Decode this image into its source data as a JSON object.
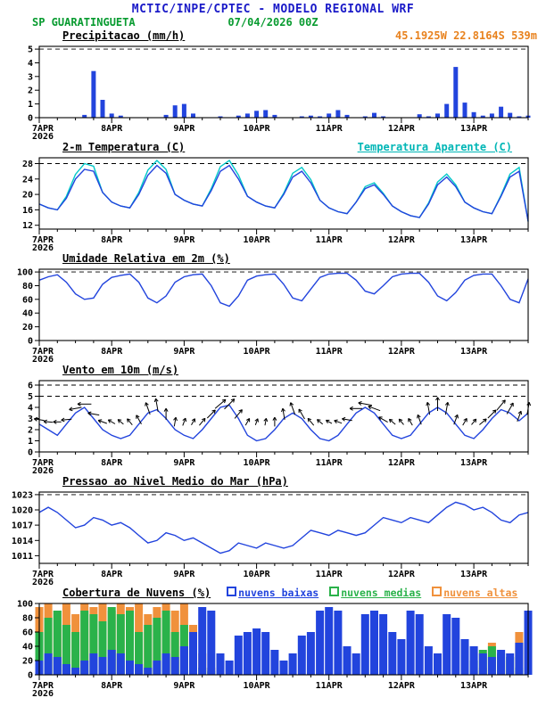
{
  "header": {
    "title": "MCTIC/INPE/CPTEC - MODELO REGIONAL WRF",
    "station": "SP GUARATINGUETA",
    "run": "07/04/2026 00Z",
    "coords": "45.1925W 22.8164S 539m"
  },
  "colors": {
    "blue": "#2244dd",
    "cyan": "#00c8c8",
    "green": "#2ab24a",
    "orange": "#f0913c",
    "title_blue": "#1a1ac8",
    "text_green": "#089b30",
    "text_orange": "#e8821e"
  },
  "x_axis": {
    "step_hours": 3,
    "count": 55,
    "day_labels": [
      "7APR",
      "8APR",
      "9APR",
      "10APR",
      "11APR",
      "12APR",
      "13APR"
    ],
    "year_label": "2026"
  },
  "chart_data": [
    {
      "id": "precipitation",
      "type": "bar",
      "title": "Precipitacao (mm/h)",
      "color_key": "blue",
      "ylim": [
        0,
        5.2
      ],
      "yticks": [
        0,
        1,
        2,
        3,
        4,
        5
      ],
      "dashed": [
        5
      ],
      "values": [
        0,
        0,
        0,
        0,
        0,
        0.2,
        3.4,
        1.3,
        0.3,
        0.15,
        0,
        0,
        0,
        0,
        0.2,
        0.9,
        1,
        0.3,
        0,
        0,
        0.1,
        0,
        0.15,
        0.3,
        0.5,
        0.55,
        0.2,
        0,
        0,
        0.1,
        0.15,
        0.1,
        0.3,
        0.55,
        0.2,
        0,
        0.1,
        0.35,
        0.1,
        0,
        0,
        0,
        0.25,
        0.1,
        0.3,
        1,
        3.7,
        1.1,
        0.4,
        0.15,
        0.3,
        0.8,
        0.35,
        0.1,
        0.15
      ]
    },
    {
      "id": "temperature",
      "type": "line",
      "title": "2-m Temperatura (C)",
      "right_label": "Temperatura Aparente (C)",
      "ylim": [
        11,
        29.5
      ],
      "yticks": [
        12,
        16,
        20,
        24,
        28
      ],
      "dashed": [
        28
      ],
      "series": [
        {
          "name": "Temperatura Aparente (C)",
          "color_key": "cyan",
          "values": [
            17.5,
            16.5,
            16,
            19.5,
            25.2,
            28,
            27.3,
            20.5,
            18,
            17,
            16.5,
            20.5,
            26.3,
            28.8,
            26.5,
            20,
            18.5,
            17.5,
            17,
            21.5,
            27.2,
            28.8,
            25,
            19.5,
            18,
            17,
            16.5,
            20.3,
            25.5,
            27,
            23.8,
            18.5,
            16.5,
            15.5,
            15,
            18,
            22,
            23,
            20.3,
            17,
            15.5,
            14.5,
            14,
            17.8,
            23.2,
            25.3,
            22.5,
            18,
            16.5,
            15.5,
            15,
            19.8,
            25.3,
            27,
            13
          ]
        },
        {
          "name": "2-m Temperatura (C)",
          "color_key": "blue",
          "values": [
            17.5,
            16.5,
            16,
            19,
            24,
            26.5,
            26,
            20.5,
            18,
            17,
            16.5,
            20,
            25,
            27.5,
            25.5,
            20,
            18.5,
            17.5,
            17,
            21,
            26,
            27.5,
            24,
            19.5,
            18,
            17,
            16.5,
            20,
            24.5,
            26,
            23,
            18.5,
            16.5,
            15.5,
            15,
            18,
            21.5,
            22.5,
            20,
            17,
            15.5,
            14.5,
            14,
            17.5,
            22.5,
            24.5,
            22,
            18,
            16.5,
            15.5,
            15,
            19.5,
            24.5,
            26,
            13
          ]
        }
      ]
    },
    {
      "id": "humidity",
      "type": "line",
      "title": "Umidade Relativa em 2m (%)",
      "ylim": [
        0,
        104
      ],
      "yticks": [
        0,
        20,
        40,
        60,
        80,
        100
      ],
      "dashed": [
        100
      ],
      "series": [
        {
          "name": "Umidade Relativa",
          "color_key": "blue",
          "values": [
            88,
            93,
            96,
            85,
            68,
            60,
            62,
            82,
            92,
            95,
            97,
            85,
            62,
            55,
            65,
            85,
            93,
            96,
            97,
            80,
            55,
            50,
            65,
            88,
            94,
            96,
            97,
            82,
            62,
            58,
            75,
            92,
            97,
            98,
            98,
            88,
            72,
            68,
            80,
            93,
            97,
            98,
            98,
            85,
            65,
            58,
            70,
            88,
            95,
            97,
            97,
            80,
            60,
            55,
            90
          ]
        }
      ]
    },
    {
      "id": "wind",
      "type": "wind",
      "title": "Vento em 10m (m/s)",
      "ylim": [
        0,
        6.4
      ],
      "yticks": [
        0,
        1,
        2,
        3,
        4,
        5,
        6
      ],
      "dashed": [
        5,
        6
      ],
      "series": [
        {
          "name": "Vento 10m",
          "color_key": "blue",
          "values": [
            2.5,
            2,
            1.5,
            2.5,
            3.5,
            4,
            3,
            2,
            1.5,
            1.2,
            1.5,
            2.5,
            3.5,
            3.8,
            3,
            2,
            1.5,
            1.2,
            2,
            3,
            4,
            4.2,
            3,
            1.5,
            1,
            1.2,
            2,
            3,
            3.5,
            3,
            2,
            1.2,
            1,
            1.5,
            2.5,
            3.5,
            4,
            3.5,
            2.5,
            1.5,
            1.2,
            1.5,
            2.5,
            3.5,
            4,
            3.5,
            2.5,
            1.5,
            1.2,
            2,
            3,
            3.8,
            3.5,
            2.8,
            3.5
          ]
        }
      ],
      "arrow_dirs": [
        170,
        175,
        180,
        185,
        190,
        180,
        170,
        160,
        150,
        140,
        130,
        120,
        110,
        100,
        90,
        80,
        70,
        60,
        50,
        45,
        40,
        45,
        50,
        60,
        70,
        80,
        90,
        100,
        110,
        120,
        130,
        140,
        150,
        160,
        170,
        180,
        170,
        160,
        150,
        140,
        130,
        120,
        110,
        100,
        90,
        80,
        70,
        60,
        50,
        40,
        45,
        50,
        60,
        70,
        80
      ]
    },
    {
      "id": "pressure",
      "type": "line",
      "title": "Pressao ao Nivel Medio do Mar (hPa)",
      "ylim": [
        1009.5,
        1023.5
      ],
      "yticks": [
        1011,
        1014,
        1017,
        1020,
        1023
      ],
      "dashed": [
        1023
      ],
      "series": [
        {
          "name": "PNMM",
          "color_key": "blue",
          "values": [
            1019.5,
            1020.5,
            1019.5,
            1018,
            1016.5,
            1017,
            1018.5,
            1018,
            1017,
            1017.5,
            1016.5,
            1015,
            1013.5,
            1014,
            1015.5,
            1015,
            1014,
            1014.5,
            1013.5,
            1012.5,
            1011.5,
            1012,
            1013.5,
            1013,
            1012.5,
            1013.5,
            1013,
            1012.5,
            1013,
            1014.5,
            1016,
            1015.5,
            1015,
            1016,
            1015.5,
            1015,
            1015.5,
            1017,
            1018.5,
            1018,
            1017.5,
            1018.5,
            1018,
            1017.5,
            1019,
            1020.5,
            1021.5,
            1021,
            1020,
            1020.5,
            1019.5,
            1018,
            1017.5,
            1019,
            1019.5
          ]
        }
      ]
    },
    {
      "id": "clouds",
      "type": "multibar",
      "title": "Cobertura de Nuvens (%)",
      "ylim": [
        0,
        100
      ],
      "yticks": [
        0,
        20,
        40,
        60,
        80,
        100
      ],
      "dashed": [],
      "legend": [
        {
          "label": "nuvens baixas",
          "color_key": "blue"
        },
        {
          "label": "nuvens medias",
          "color_key": "green"
        },
        {
          "label": "nuvens altas",
          "color_key": "orange"
        }
      ],
      "series": [
        {
          "name": "nuvens altas",
          "color_key": "orange",
          "values": [
            95,
            100,
            90,
            100,
            85,
            100,
            95,
            100,
            90,
            100,
            95,
            100,
            85,
            95,
            100,
            90,
            100,
            70,
            30,
            10,
            0,
            0,
            0,
            0,
            0,
            0,
            0,
            0,
            0,
            0,
            0,
            0,
            0,
            0,
            0,
            0,
            0,
            0,
            0,
            0,
            0,
            0,
            0,
            0,
            0,
            0,
            0,
            0,
            5,
            10,
            45,
            20,
            5,
            60,
            0
          ]
        },
        {
          "name": "nuvens medias",
          "color_key": "green",
          "values": [
            60,
            80,
            90,
            70,
            60,
            90,
            85,
            75,
            95,
            85,
            90,
            60,
            70,
            80,
            90,
            60,
            70,
            40,
            10,
            5,
            0,
            0,
            0,
            0,
            0,
            0,
            0,
            0,
            0,
            0,
            0,
            0,
            0,
            0,
            0,
            0,
            0,
            0,
            0,
            0,
            0,
            0,
            0,
            0,
            0,
            0,
            0,
            0,
            20,
            35,
            40,
            30,
            25,
            10,
            5
          ]
        },
        {
          "name": "nuvens baixas",
          "color_key": "blue",
          "values": [
            20,
            30,
            25,
            15,
            10,
            20,
            30,
            25,
            35,
            30,
            20,
            15,
            10,
            20,
            30,
            25,
            40,
            60,
            95,
            90,
            30,
            20,
            55,
            60,
            65,
            60,
            35,
            20,
            30,
            55,
            60,
            90,
            95,
            90,
            40,
            30,
            85,
            90,
            85,
            60,
            50,
            90,
            85,
            40,
            30,
            85,
            80,
            50,
            40,
            30,
            25,
            35,
            30,
            45,
            90
          ]
        }
      ]
    }
  ]
}
